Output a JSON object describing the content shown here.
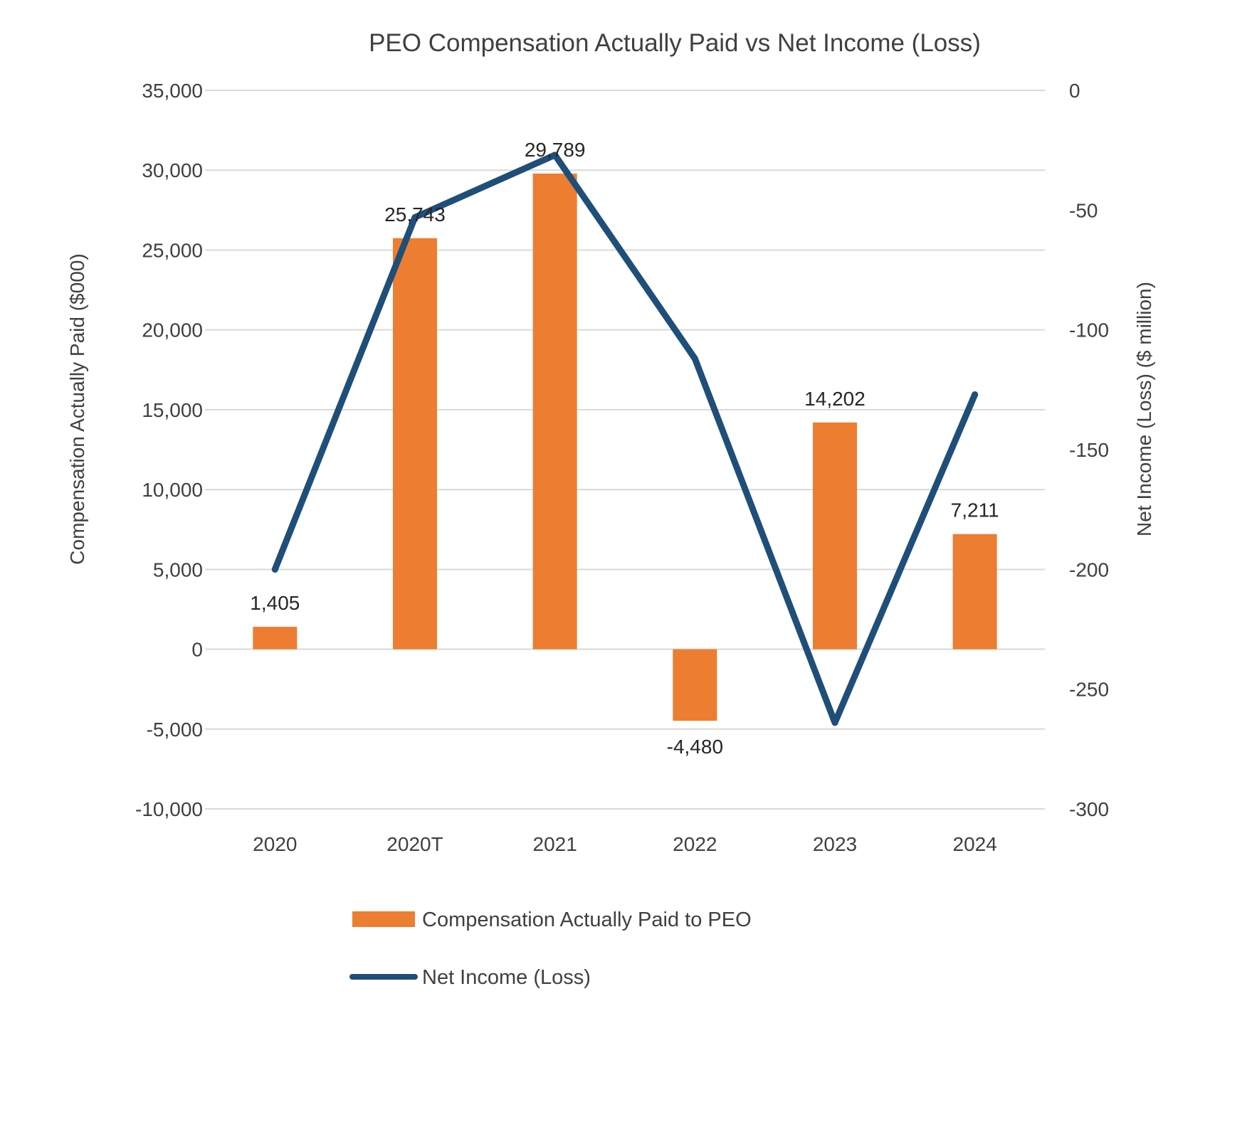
{
  "colors": {
    "bar": "#ED7D31",
    "line": "#1F4E79",
    "grid": "#D9D9D9",
    "text": "#404040"
  },
  "chart_data": {
    "type": "bar",
    "title": "PEO Compensation Actually Paid vs Net Income (Loss)",
    "categories": [
      "2020",
      "2020T",
      "2021",
      "2022",
      "2023",
      "2024"
    ],
    "ylabel": "Compensation Actually Paid ($000)",
    "y2label": "Net Income (Loss) ($ million)",
    "ylim": [
      -10000,
      35000
    ],
    "y2lim": [
      -300,
      0
    ],
    "yticks": [
      "-10,000",
      "-5,000",
      "0",
      "5,000",
      "10,000",
      "15,000",
      "20,000",
      "25,000",
      "30,000",
      "35,000"
    ],
    "y2ticks": [
      "-300",
      "-250",
      "-200",
      "-150",
      "-100",
      "-50",
      "0"
    ],
    "grid": true,
    "legend_position": "bottom",
    "series": [
      {
        "name": "Compensation Actually Paid to PEO",
        "type": "bar",
        "axis": "left",
        "values": [
          1405,
          25743,
          29789,
          -4480,
          14202,
          7211
        ],
        "labels": [
          "1,405",
          "25,743",
          "29,789",
          "-4,480",
          "14,202",
          "7,211"
        ]
      },
      {
        "name": "Net Income (Loss)",
        "type": "line",
        "axis": "right",
        "values": [
          -200,
          -53,
          -27,
          -112,
          -264,
          -127
        ]
      }
    ]
  }
}
